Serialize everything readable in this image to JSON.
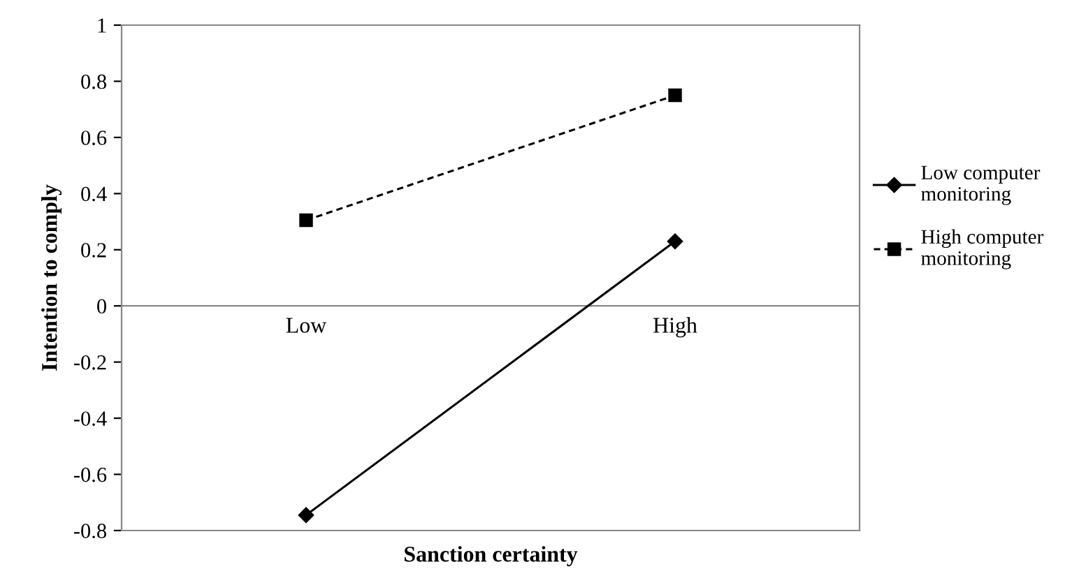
{
  "chart_data": {
    "type": "line",
    "xlabel": "Sanction certainty",
    "ylabel": "Intention to comply",
    "categories": [
      "Low",
      "High"
    ],
    "series": [
      {
        "name": "Low computer monitoring",
        "color": "#000000",
        "values": [
          -0.745,
          0.23
        ],
        "marker": "diamond",
        "line_style": "solid"
      },
      {
        "name": "High computer monitoring",
        "color": "#000000",
        "values": [
          0.305,
          0.75
        ],
        "marker": "square",
        "line_style": "dashed"
      }
    ],
    "ylim": [
      -0.8,
      1
    ],
    "yticks": [
      {
        "value": -0.8,
        "label": "-0.8"
      },
      {
        "value": -0.6,
        "label": "-0.6"
      },
      {
        "value": -0.4,
        "label": "-0.4"
      },
      {
        "value": -0.2,
        "label": "-0.2"
      },
      0,
      {
        "value": 0.2,
        "label": "0.2"
      },
      {
        "value": 0.4,
        "label": "0.4"
      },
      {
        "value": 0.6,
        "label": "0.6"
      },
      {
        "value": 0.8,
        "label": "0.8"
      },
      1
    ],
    "grid": false,
    "legend": "right"
  }
}
